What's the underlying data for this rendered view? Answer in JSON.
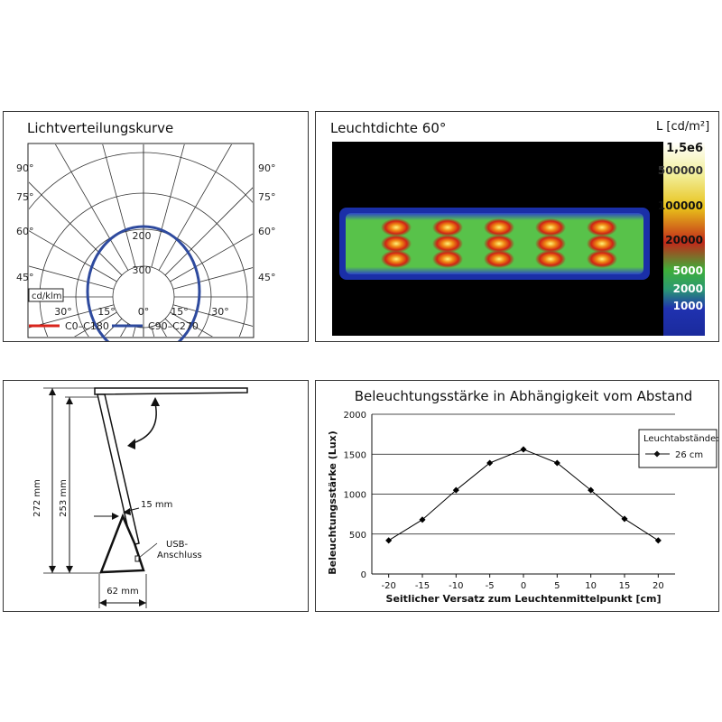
{
  "panel1": {
    "title": "Lichtverteilungskurve",
    "unit_label": "cd/klm",
    "angle_labels_left": [
      "90°",
      "75°",
      "60°",
      "45°"
    ],
    "angle_labels_right": [
      "90°",
      "75°",
      "60°",
      "45°"
    ],
    "angle_labels_bottom": [
      "30°",
      "15°",
      "0°",
      "15°",
      "30°"
    ],
    "radial_labels": [
      "200",
      "300"
    ],
    "legend": [
      {
        "label": "C0–C180",
        "color": "#d9241c"
      },
      {
        "label": "C90–C270",
        "color": "#2e4a9e"
      }
    ]
  },
  "panel2": {
    "title": "Leuchtdichte 60°",
    "unit_label": "L [cd/m²]",
    "scale": [
      {
        "label": "1,5e6",
        "color": "#ffffff"
      },
      {
        "label": "500000",
        "color": "#f3f0a0"
      },
      {
        "label": "100000",
        "color": "#d9b010"
      },
      {
        "label": "20000",
        "color": "#c62a14"
      },
      {
        "label": "5000",
        "color": "#37b23a"
      },
      {
        "label": "2000",
        "color": "#1b7fa0"
      },
      {
        "label": "1000",
        "color": "#1a2fa8"
      }
    ]
  },
  "panel3": {
    "dim_272": "272 mm",
    "dim_253": "253 mm",
    "dim_15": "15 mm",
    "dim_62": "62 mm",
    "usb_label_1": "USB-",
    "usb_label_2": "Anschluss"
  },
  "chart_data": {
    "type": "line",
    "title": "Beleuchtungsstärke in Abhängigkeit vom Abstand",
    "xlabel": "Seitlicher Versatz zum Leuchtenmittelpunkt [cm]",
    "ylabel": "Beleuchtungsstärke (Lux)",
    "x": [
      -20,
      -15,
      -10,
      -5,
      0,
      5,
      10,
      15,
      20
    ],
    "xlim": [
      -22.5,
      22.5
    ],
    "ylim": [
      0,
      2000
    ],
    "x_ticks": [
      "-20",
      "-15",
      "-10",
      "-5",
      "0",
      "5",
      "10",
      "15",
      "20"
    ],
    "y_ticks": [
      "0",
      "500",
      "1000",
      "1500",
      "2000"
    ],
    "grid": true,
    "legend_title": "Leuchtabstände:",
    "legend_position": "top-right",
    "series": [
      {
        "name": "26 cm",
        "color": "#000000",
        "values": [
          420,
          680,
          1050,
          1390,
          1560,
          1390,
          1050,
          690,
          420
        ]
      }
    ]
  }
}
